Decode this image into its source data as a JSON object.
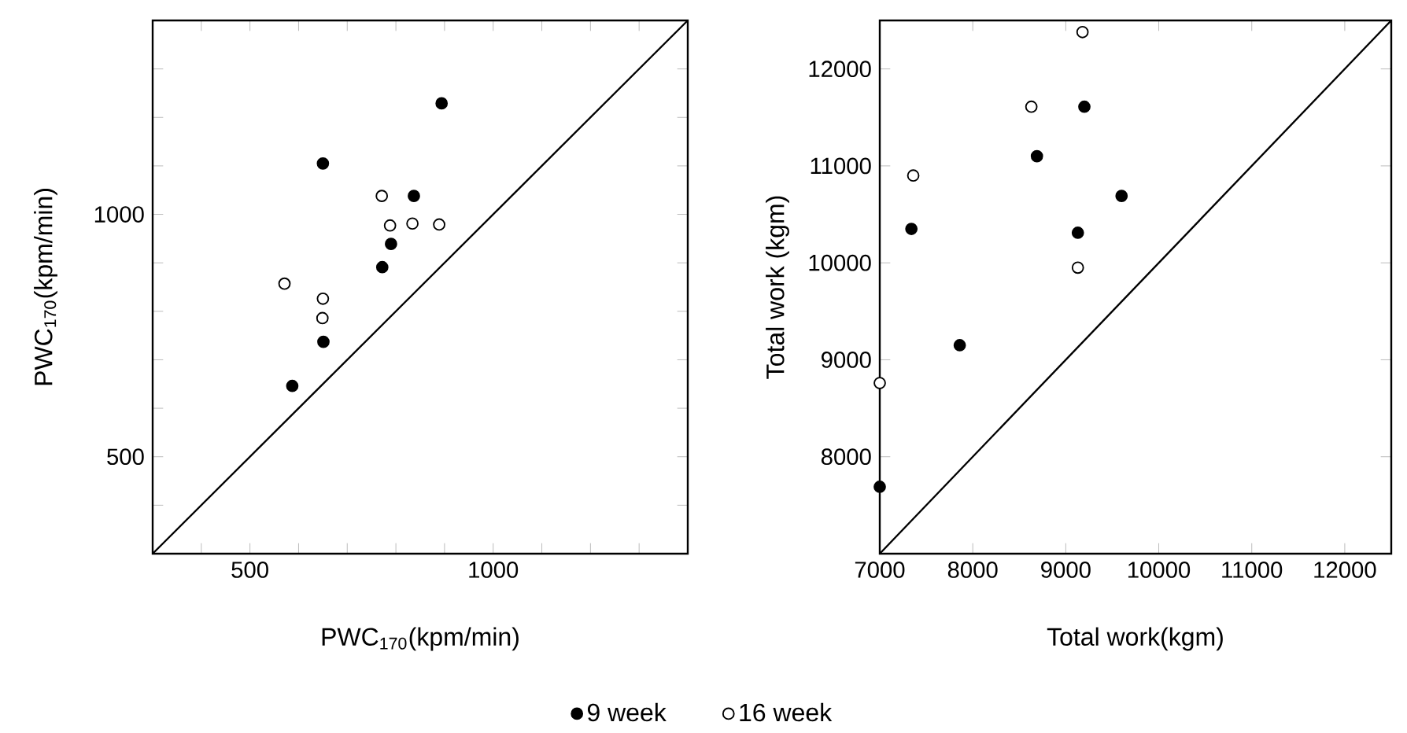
{
  "chart_data": [
    {
      "type": "scatter",
      "xlabel": "PWC$_{170}$(kpm/min)",
      "ylabel": "PWC$_{170}$(kpm/min)",
      "xlim": [
        300,
        1400
      ],
      "ylim": [
        300,
        1400
      ],
      "xticks": [
        {
          "value": 400,
          "label": null
        },
        500,
        {
          "value": 600,
          "label": null
        },
        {
          "value": 700,
          "label": null
        },
        {
          "value": 800,
          "label": null
        },
        {
          "value": 900,
          "label": null
        },
        1000,
        {
          "value": 1100,
          "label": null
        },
        {
          "value": 1200,
          "label": null
        },
        {
          "value": 1300,
          "label": null
        }
      ],
      "yticks": [
        {
          "value": 400,
          "label": null
        },
        500,
        {
          "value": 600,
          "label": null
        },
        {
          "value": 700,
          "label": null
        },
        {
          "value": 800,
          "label": null
        },
        {
          "value": 900,
          "label": null
        },
        1000,
        {
          "value": 1100,
          "label": null
        },
        {
          "value": 1200,
          "label": null
        },
        {
          "value": 1300,
          "label": null
        }
      ],
      "legend": "bottom",
      "series": [
        {
          "name": "9 week",
          "marker": "circle",
          "color": "#000000",
          "x": [
            894,
            650,
            837,
            790,
            772,
            651,
            587
          ],
          "values": [
            1229,
            1105,
            1038,
            939,
            891,
            737,
            646
          ]
        },
        {
          "name": "16 week",
          "marker": "circle",
          "color": "#ffffff",
          "x": [
            771,
            788,
            834,
            889,
            571,
            650,
            649
          ],
          "values": [
            1038,
            977,
            981,
            979,
            857,
            826,
            786
          ]
        },
        {
          "type": "line",
          "marker": "none",
          "color": "#000000",
          "x": [
            300,
            1400
          ],
          "values": [
            300,
            1400
          ]
        }
      ]
    },
    {
      "type": "scatter",
      "xlabel": "Total work(kgm)",
      "ylabel": "Total work (kgm)",
      "xlim": [
        7000,
        12500
      ],
      "ylim": [
        7000,
        12500
      ],
      "xticks": [
        7000,
        8000,
        9000,
        10000,
        11000,
        12000
      ],
      "yticks": [
        8000,
        9000,
        10000,
        11000,
        12000
      ],
      "series": [
        {
          "marker": "circle",
          "color": "#000000",
          "x": [
            9200,
            8690,
            7340,
            9600,
            9130,
            7860,
            7000
          ],
          "values": [
            11610,
            11100,
            10350,
            10690,
            10310,
            9150,
            7690
          ]
        },
        {
          "marker": "circle",
          "color": "#ffffff",
          "x": [
            9180,
            8630,
            7360,
            9130,
            7000
          ],
          "values": [
            12380,
            11610,
            10900,
            9950,
            8760
          ]
        },
        {
          "type": "line",
          "marker": "none",
          "color": "#000000",
          "x": [
            7000,
            12500
          ],
          "values": [
            7000,
            12500
          ]
        }
      ]
    }
  ]
}
